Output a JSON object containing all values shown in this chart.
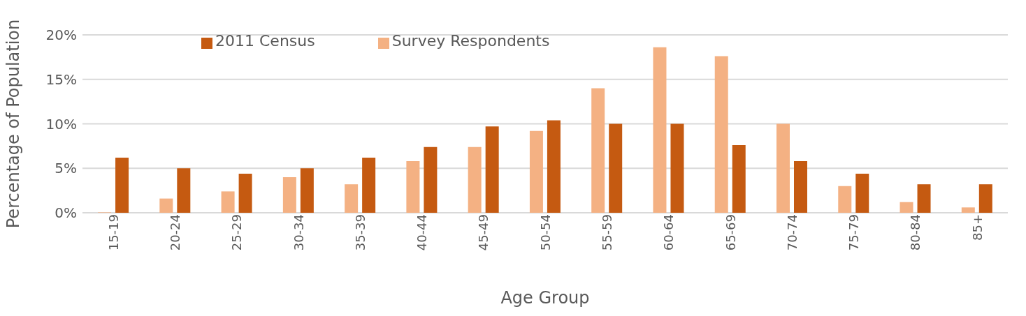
{
  "chart_data": {
    "type": "bar",
    "xlabel": "Age Group",
    "ylabel": "Percentage of Population",
    "categories": [
      "15-19",
      "20-24",
      "25-29",
      "30-34",
      "35-39",
      "40-44",
      "45-49",
      "50-54",
      "55-59",
      "60-64",
      "65-69",
      "70-74",
      "75-79",
      "80-84",
      "85+"
    ],
    "series": [
      {
        "name": "Survey Respondents",
        "color": "#f4b183",
        "values": [
          0.05,
          1.6,
          2.4,
          4.0,
          3.2,
          5.8,
          7.4,
          9.2,
          14.0,
          18.6,
          17.6,
          10.0,
          3.0,
          1.2,
          0.6
        ]
      },
      {
        "name": "2011 Census",
        "color": "#c55a11",
        "values": [
          6.2,
          5.0,
          4.4,
          5.0,
          6.2,
          7.4,
          9.7,
          10.4,
          10.0,
          10.0,
          7.6,
          5.8,
          4.4,
          3.2,
          3.2
        ]
      }
    ],
    "ylim": [
      0,
      20
    ],
    "yticks": [
      {
        "value": 0,
        "label": "0%"
      },
      {
        "value": 5,
        "label": "5%"
      },
      {
        "value": 10,
        "label": "10%"
      },
      {
        "value": 15,
        "label": "15%"
      },
      {
        "value": 20,
        "label": "20%"
      }
    ],
    "grid": "y",
    "legend": "top"
  }
}
